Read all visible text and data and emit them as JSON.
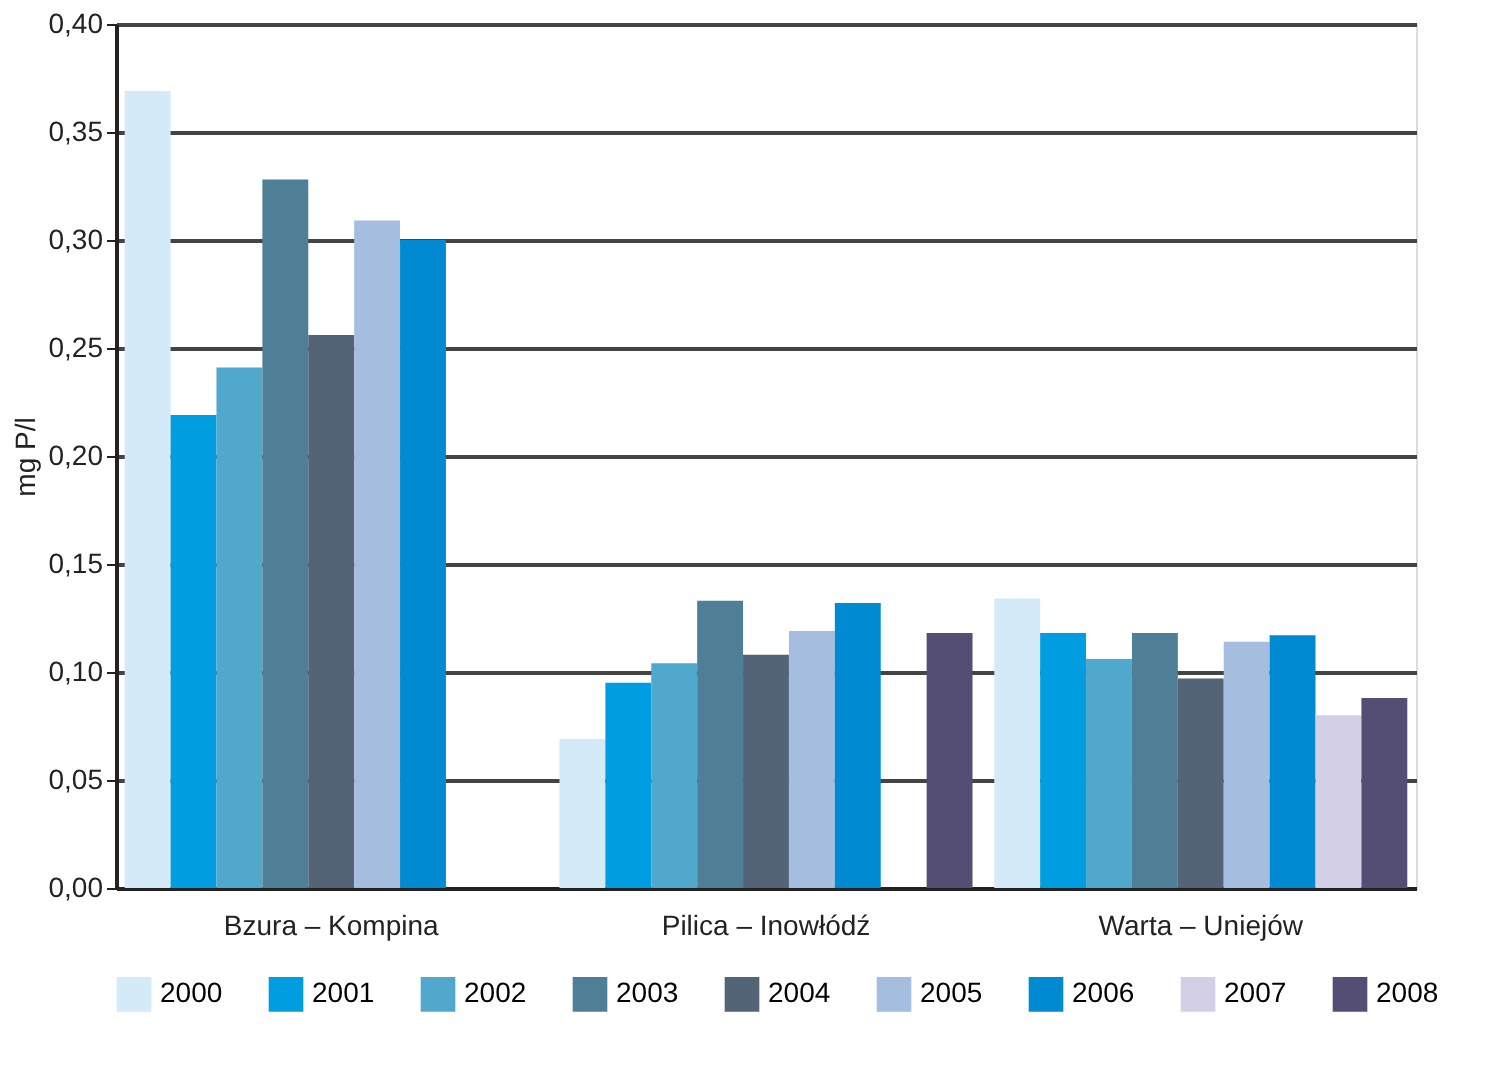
{
  "chart_data": {
    "type": "bar",
    "ylabel": "mg P/l",
    "categories": [
      "Bzura – Kompina",
      "Pilica – Inowłódź",
      "Warta – Uniejów"
    ],
    "series": [
      {
        "name": "2000",
        "color": "#d4eaf8",
        "values": [
          0.369,
          0.069,
          0.134
        ]
      },
      {
        "name": "2001",
        "color": "#009ee0",
        "values": [
          0.219,
          0.095,
          0.118
        ]
      },
      {
        "name": "2002",
        "color": "#50a8cc",
        "values": [
          0.241,
          0.104,
          0.106
        ]
      },
      {
        "name": "2003",
        "color": "#4e7f96",
        "values": [
          0.328,
          0.133,
          0.118
        ]
      },
      {
        "name": "2004",
        "color": "#536476",
        "values": [
          0.256,
          0.108,
          0.097
        ]
      },
      {
        "name": "2005",
        "color": "#a5bddf",
        "values": [
          0.309,
          0.119,
          0.114
        ]
      },
      {
        "name": "2006",
        "color": "#008ad2",
        "values": [
          0.3,
          0.132,
          0.117
        ]
      },
      {
        "name": "2007",
        "color": "#d2cfe6",
        "values": [
          null,
          null,
          0.08
        ]
      },
      {
        "name": "2008",
        "color": "#554e74",
        "values": [
          null,
          0.118,
          0.088
        ]
      }
    ],
    "ylim": [
      0,
      0.4
    ],
    "yticks": [
      {
        "value": 0,
        "label": "0,00"
      },
      {
        "value": 0.05,
        "label": "0,05"
      },
      {
        "value": 0.1,
        "label": "0,10"
      },
      {
        "value": 0.15,
        "label": "0,15"
      },
      {
        "value": 0.2,
        "label": "0,20"
      },
      {
        "value": 0.25,
        "label": "0,25"
      },
      {
        "value": 0.3,
        "label": "0,30"
      },
      {
        "value": 0.35,
        "label": "0,35"
      },
      {
        "value": 0.4,
        "label": "0,40"
      }
    ],
    "grid": "y",
    "legend": "bottom"
  }
}
